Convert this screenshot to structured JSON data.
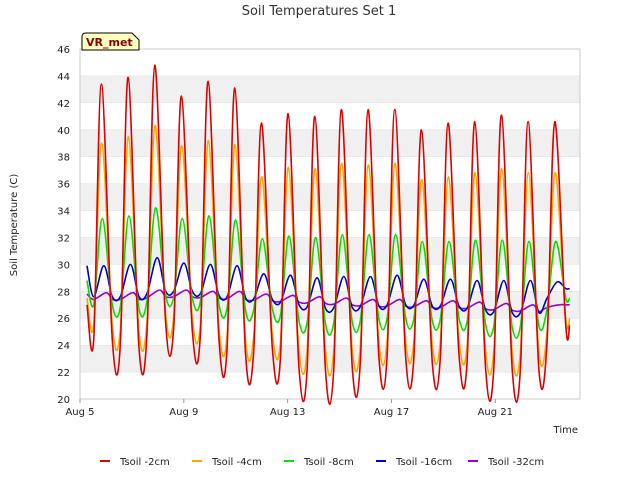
{
  "chart_data": {
    "type": "line",
    "title": "Soil Temperatures Set 1",
    "xlabel": "Time",
    "ylabel": "Soil Temperature (C)",
    "ylim": [
      20,
      46
    ],
    "y_ticks": [
      20,
      22,
      24,
      26,
      28,
      30,
      32,
      34,
      36,
      38,
      40,
      42,
      44,
      46
    ],
    "x_range_days": [
      "Aug 5",
      "Aug 23.5"
    ],
    "x_ticks": [
      "Aug 5",
      "Aug 9",
      "Aug 13",
      "Aug 17",
      "Aug 21"
    ],
    "x_tick_day_offsets": [
      0,
      4,
      8,
      12,
      16
    ],
    "grid": "horizontal bands",
    "legend_position": "bottom",
    "site_badge": "VR_met",
    "day_offsets": [
      0.3,
      1.3,
      2.3,
      3.3,
      4.3,
      5.3,
      6.3,
      7.3,
      8.3,
      9.3,
      10.3,
      11.3,
      12.3,
      13.3,
      14.3,
      15.3,
      16.3,
      17.3
    ],
    "series": [
      {
        "name": "Tsoil -2cm",
        "color": "#dd0000",
        "start": 27.0,
        "end": 25.5,
        "peak_phase": 0.62,
        "max": [
          43.4,
          43.9,
          44.8,
          42.5,
          43.6,
          43.1,
          40.5,
          41.2,
          41.0,
          41.5,
          41.5,
          41.5,
          40.0,
          40.5,
          40.6,
          41.1,
          40.6,
          40.6
        ],
        "min": [
          24.4,
          23.8,
          25.6,
          25.1,
          24.4,
          23.2,
          23.8,
          22.3,
          21.9,
          22.3,
          23.0,
          23.1,
          22.7,
          23.3,
          22.2,
          22.1,
          22.1,
          25.5
        ]
      },
      {
        "name": "Tsoil -4cm",
        "color": "#ffa500",
        "start": 27.5,
        "end": 26.0,
        "peak_phase": 0.64,
        "max": [
          39.0,
          39.5,
          40.3,
          38.8,
          39.2,
          38.9,
          36.5,
          37.2,
          37.1,
          37.5,
          37.4,
          37.5,
          36.3,
          36.5,
          36.8,
          37.1,
          36.8,
          36.8
        ],
        "min": [
          25.5,
          25.0,
          26.3,
          26.0,
          25.2,
          24.3,
          24.9,
          23.6,
          23.4,
          23.6,
          24.1,
          24.3,
          24.0,
          24.4,
          23.5,
          23.4,
          23.4,
          26.0
        ]
      },
      {
        "name": "Tsoil -8cm",
        "color": "#00e000",
        "start": 28.8,
        "end": 27.5,
        "peak_phase": 0.68,
        "max": [
          33.4,
          33.6,
          34.2,
          33.4,
          33.6,
          33.3,
          31.9,
          32.1,
          32.0,
          32.2,
          32.2,
          32.2,
          31.7,
          31.7,
          31.8,
          31.8,
          31.7,
          31.7
        ],
        "min": [
          27.0,
          26.7,
          27.7,
          27.5,
          27.0,
          26.5,
          26.7,
          25.8,
          25.5,
          25.7,
          25.9,
          26.0,
          25.8,
          26.0,
          25.5,
          25.3,
          25.4,
          27.5
        ]
      },
      {
        "name": "Tsoil -16cm",
        "color": "#0000cc",
        "start": 29.9,
        "end": 28.2,
        "peak_phase": 0.78,
        "max": [
          29.9,
          30.0,
          30.5,
          30.1,
          30.0,
          29.9,
          29.3,
          29.2,
          29.0,
          29.1,
          29.1,
          29.2,
          28.9,
          28.9,
          28.8,
          28.8,
          28.8,
          28.7
        ],
        "min": [
          27.6,
          27.6,
          28.0,
          28.0,
          27.7,
          27.5,
          27.4,
          27.0,
          26.7,
          26.8,
          26.9,
          27.0,
          26.9,
          26.9,
          26.6,
          26.4,
          26.4,
          28.2
        ]
      },
      {
        "name": "Tsoil -32cm",
        "color": "#9900cc",
        "start": 27.8,
        "end": 27.0,
        "peak_phase": 0.95,
        "max": [
          27.9,
          27.9,
          28.1,
          28.1,
          28.0,
          28.0,
          27.8,
          27.7,
          27.6,
          27.5,
          27.4,
          27.4,
          27.3,
          27.3,
          27.2,
          27.1,
          27.0,
          27.0
        ],
        "min": [
          27.4,
          27.4,
          27.6,
          27.6,
          27.5,
          27.4,
          27.3,
          27.2,
          27.1,
          27.0,
          26.9,
          26.9,
          26.8,
          26.8,
          26.7,
          26.6,
          26.5,
          27.0
        ]
      }
    ]
  }
}
